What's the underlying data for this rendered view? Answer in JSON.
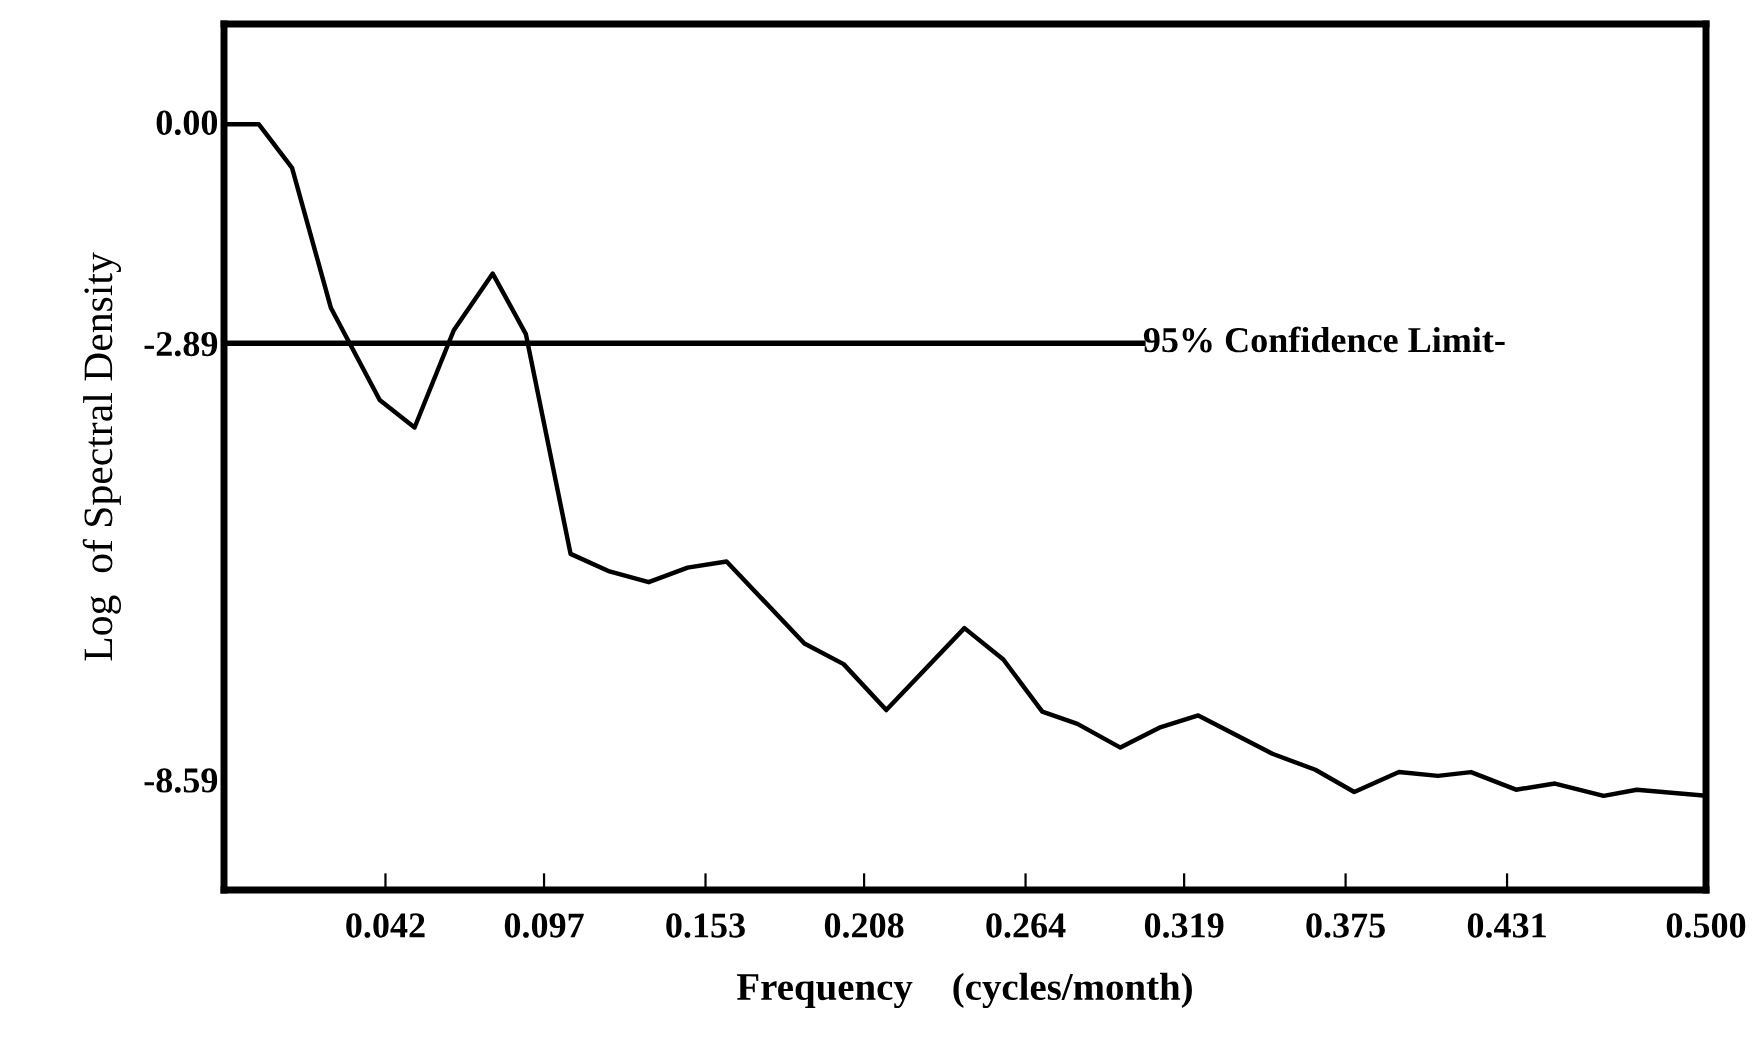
{
  "chart_data": {
    "type": "line",
    "xlabel": "Frequency    (cycles/month)",
    "ylabel": "Log  of Spectral Density",
    "x": [
      -0.014,
      -0.0019,
      0.0096,
      0.0231,
      0.04,
      0.0521,
      0.0657,
      0.0792,
      0.0907,
      0.1062,
      0.1197,
      0.1333,
      0.1468,
      0.1603,
      0.1873,
      0.2009,
      0.2157,
      0.2428,
      0.2563,
      0.2698,
      0.282,
      0.2969,
      0.3104,
      0.3239,
      0.3496,
      0.3645,
      0.378,
      0.3935,
      0.407,
      0.4185,
      0.4341,
      0.4476,
      0.4645,
      0.476,
      0.5
    ],
    "series": [
      {
        "color": "#000000",
        "values": [
          -0.03,
          -0.03,
          -0.6,
          -2.43,
          -3.63,
          -3.99,
          -2.72,
          -1.98,
          -2.77,
          -5.64,
          -5.87,
          -6.01,
          -5.82,
          -5.74,
          -6.81,
          -7.08,
          -7.68,
          -6.61,
          -7.02,
          -7.7,
          -7.86,
          -8.17,
          -7.91,
          -7.75,
          -8.25,
          -8.46,
          -8.75,
          -8.49,
          -8.54,
          -8.49,
          -8.72,
          -8.64,
          -8.8,
          -8.72,
          -8.8
        ]
      }
    ],
    "xlim": [
      -0.014,
      0.5
    ],
    "ylim": [
      -10.03,
      1.28
    ],
    "xticks": [
      {
        "value": 0.042,
        "label": "0.042"
      },
      {
        "value": 0.097,
        "label": "0.097"
      },
      {
        "value": 0.153,
        "label": "0.153"
      },
      {
        "value": 0.208,
        "label": "0.208"
      },
      {
        "value": 0.264,
        "label": "0.264"
      },
      {
        "value": 0.319,
        "label": "0.319"
      },
      {
        "value": 0.375,
        "label": "0.375"
      },
      {
        "value": 0.431,
        "label": "0.431"
      },
      {
        "value": 0.5,
        "label": "0.500"
      }
    ],
    "yticks": [
      {
        "value": 0,
        "label": "0.00"
      },
      {
        "value": -2.89,
        "label": "-2.89"
      },
      {
        "value": -8.59,
        "label": "-8.59"
      }
    ],
    "ref_lines": [
      {
        "axis": "y",
        "value": -2.89,
        "label": "95% Confidence Limit-",
        "color": "#000000"
      }
    ],
    "grid": false,
    "legend": false
  }
}
